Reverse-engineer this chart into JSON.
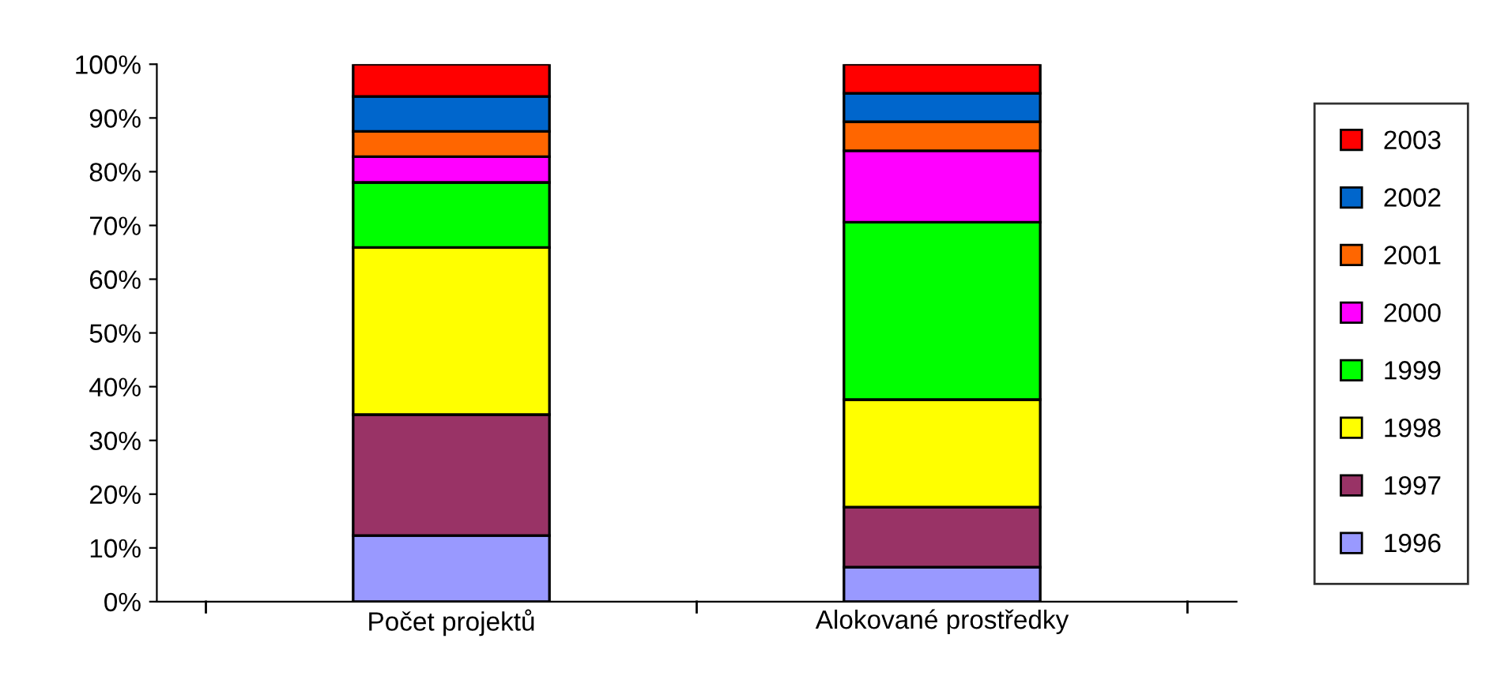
{
  "chart_data": {
    "type": "bar",
    "stacked": true,
    "categories": [
      "Počet projektů",
      "Alokované prostředky"
    ],
    "series": [
      {
        "name": "1996",
        "color": "#9999ff",
        "values": [
          12.3,
          6.4
        ]
      },
      {
        "name": "1997",
        "color": "#993366",
        "values": [
          22.5,
          11.2
        ]
      },
      {
        "name": "1998",
        "color": "#ffff00",
        "values": [
          31.1,
          20.0
        ]
      },
      {
        "name": "1999",
        "color": "#00ff00",
        "values": [
          12.1,
          33.0
        ]
      },
      {
        "name": "2000",
        "color": "#ff00ff",
        "values": [
          4.8,
          13.3
        ]
      },
      {
        "name": "2001",
        "color": "#ff6600",
        "values": [
          4.7,
          5.4
        ]
      },
      {
        "name": "2002",
        "color": "#0066cc",
        "values": [
          6.5,
          5.3
        ]
      },
      {
        "name": "2003",
        "color": "#ff0000",
        "values": [
          6.0,
          5.4
        ]
      }
    ],
    "ylim": [
      0,
      100
    ],
    "yticks": [
      {
        "value": 0,
        "label": "0%"
      },
      {
        "value": 10,
        "label": "10%"
      },
      {
        "value": 20,
        "label": "20%"
      },
      {
        "value": 30,
        "label": "30%"
      },
      {
        "value": 40,
        "label": "40%"
      },
      {
        "value": 50,
        "label": "50%"
      },
      {
        "value": 60,
        "label": "60%"
      },
      {
        "value": 70,
        "label": "70%"
      },
      {
        "value": 80,
        "label": "80%"
      },
      {
        "value": 90,
        "label": "90%"
      },
      {
        "value": 100,
        "label": "100%"
      }
    ],
    "grid": false,
    "legend": "right"
  }
}
